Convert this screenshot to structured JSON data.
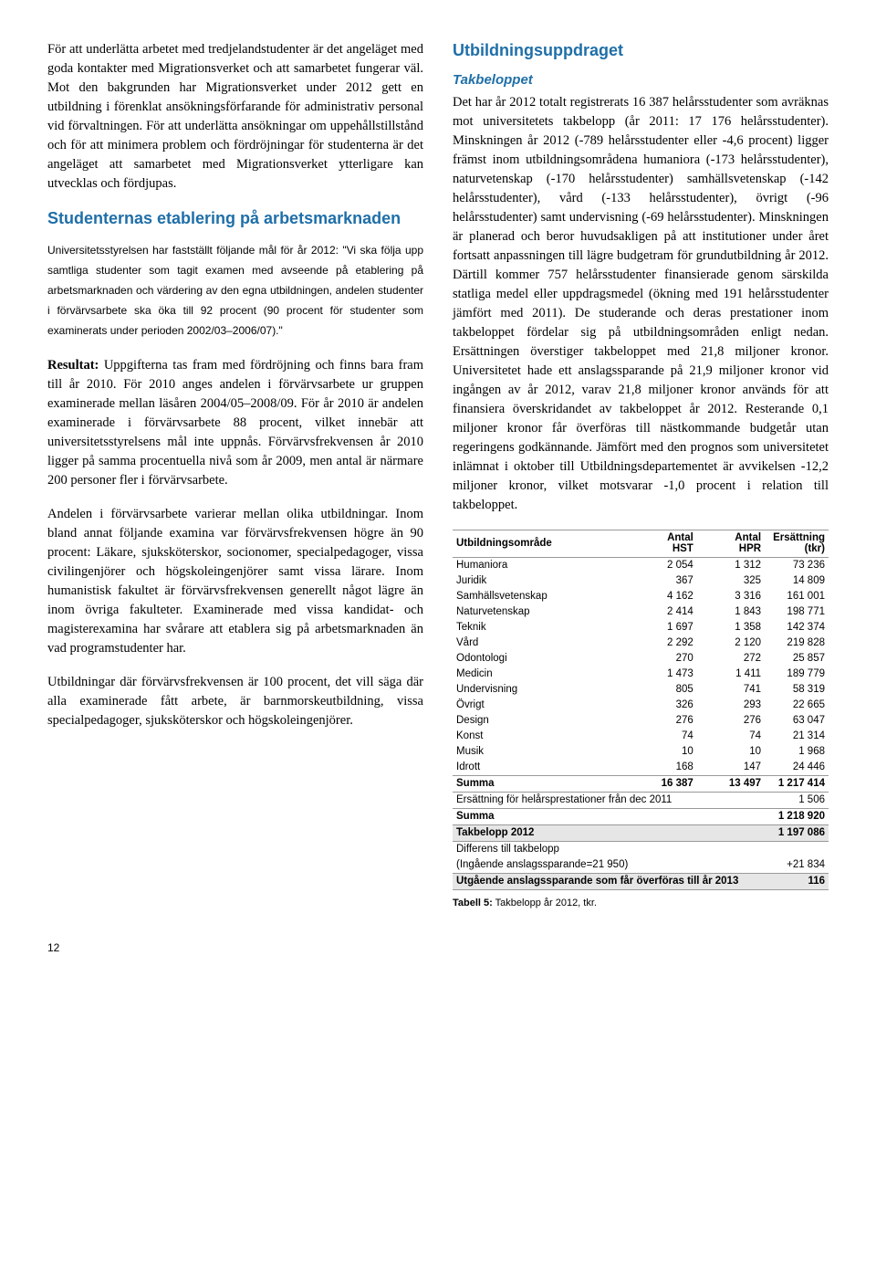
{
  "col1": {
    "p1": "För att underlätta arbetet med tredjelandstudenter är det angeläget med goda kontakter med Migrationsverket och att samarbetet fungerar väl. Mot den bakgrunden har Migrationsverket under 2012 gett en utbildning i förenklat ansökningsförfarande för administrativ personal vid förvaltningen. För att underlätta ansökningar om uppehållstillstånd och för att minimera problem och fördröjningar för studenterna är det angeläget att samarbetet med Migrationsverket ytterligare kan utvecklas och fördjupas.",
    "h1": "Studenternas etablering på arbetsmarknaden",
    "policy": "Universitetsstyrelsen har fastställt följande mål för år 2012: \"Vi ska följa upp samtliga studenter som tagit examen med avseende på etablering på arbetsmarknaden och värdering av den egna utbildningen, andelen studenter i förvärvsarbete ska öka till 92 procent (90 procent för studenter som examinerats under perioden 2002/03–2006/07).\"",
    "p2_label": "Resultat:",
    "p2": " Uppgifterna tas fram med fördröjning och finns bara fram till år 2010. För 2010 anges andelen i förvärvsarbete ur gruppen examinerade mellan läsåren 2004/05–2008/09. För år 2010 är andelen examinerade i förvärvsarbete 88 procent, vilket innebär att universitetsstyrelsens mål inte uppnås. Förvärvsfrekvensen år 2010 ligger på samma procentuella nivå som år 2009, men antal är närmare 200 personer fler i förvärvsarbete.",
    "p3": "Andelen i förvärvsarbete varierar mellan olika utbildningar. Inom bland annat följande examina var förvärvsfrekvensen högre än 90 procent: Läkare, sjuksköterskor, socionomer, specialpedagoger, vissa civilingenjörer och högskoleingenjörer samt vissa lärare. Inom humanistisk fakultet är förvärvsfrekvensen generellt något lägre än inom övriga fakulteter. Examinerade med vissa kandidat- och magisterexamina har svårare att etablera sig på arbetsmarknaden än vad programstudenter har.",
    "p4": "Utbildningar där förvärvsfrekvensen är 100 procent, det vill säga där alla examinerade fått arbete, är barnmorskeutbildning, vissa specialpedagoger, sjuksköterskor och högskoleingenjörer."
  },
  "col2": {
    "h1": "Utbildningsuppdraget",
    "h2": "Takbeloppet",
    "p1": "Det har år 2012 totalt registrerats 16 387 helårsstudenter som avräknas mot universitetets takbelopp (år 2011: 17 176 helårsstudenter). Minskningen år 2012 (-789 helårsstudenter eller -4,6 procent) ligger främst inom utbildningsområdena humaniora (-173 helårsstudenter), naturvetenskap (-170 helårsstudenter) samhällsvetenskap (-142 helårsstudenter), vård (-133 helårsstudenter), övrigt (-96 helårsstudenter) samt undervisning (-69 helårsstudenter). Minskningen är planerad och beror huvudsakligen på att institutioner under året fortsatt anpassningen till lägre budgetram för grundutbildning år 2012. Därtill kommer 757 helårsstudenter finansierade genom särskilda statliga medel eller uppdragsmedel (ökning med 191 helårsstudenter jämfört med 2011). De studerande och deras prestationer inom takbeloppet fördelar sig på utbildningsområden enligt nedan. Ersättningen överstiger takbeloppet med 21,8 miljoner kronor. Universitetet hade ett anslagssparande på 21,9 miljoner kronor vid ingången av år 2012, varav 21,8 miljoner kronor används för att finansiera överskridandet av takbeloppet år 2012. Resterande 0,1 miljoner kronor får överföras till nästkommande budgetår utan regeringens godkännande. Jämfört med den prognos som universitetet inlämnat i oktober till Utbildningsdepartementet är avvikelsen -12,2 miljoner kronor, vilket motsvarar -1,0 procent i relation till takbeloppet."
  },
  "table": {
    "head": [
      "Utbildningsområde",
      "Antal HST",
      "Antal HPR",
      "Ersättning (tkr)"
    ],
    "rows": [
      [
        "Humaniora",
        "2 054",
        "1 312",
        "73 236"
      ],
      [
        "Juridik",
        "367",
        "325",
        "14 809"
      ],
      [
        "Samhällsvetenskap",
        "4 162",
        "3 316",
        "161 001"
      ],
      [
        "Naturvetenskap",
        "2 414",
        "1 843",
        "198 771"
      ],
      [
        "Teknik",
        "1 697",
        "1 358",
        "142 374"
      ],
      [
        "Vård",
        "2 292",
        "2 120",
        "219 828"
      ],
      [
        "Odontologi",
        "270",
        "272",
        "25 857"
      ],
      [
        "Medicin",
        "1 473",
        "1 411",
        "189 779"
      ],
      [
        "Undervisning",
        "805",
        "741",
        "58 319"
      ],
      [
        "Övrigt",
        "326",
        "293",
        "22 665"
      ],
      [
        "Design",
        "276",
        "276",
        "63 047"
      ],
      [
        "Konst",
        "74",
        "74",
        "21 314"
      ],
      [
        "Musik",
        "10",
        "10",
        "1 968"
      ],
      [
        "Idrott",
        "168",
        "147",
        "24 446"
      ]
    ],
    "sum1": [
      "Summa",
      "16 387",
      "13 497",
      "1 217 414"
    ],
    "extra1": [
      "Ersättning för helårsprestationer från dec 2011",
      "1 506"
    ],
    "sum2": [
      "Summa",
      "1 218 920"
    ],
    "tak": [
      "Takbelopp 2012",
      "1 197 086"
    ],
    "diff_label": "Differens till takbelopp",
    "diff_note": "(Ingående anslagssparande=21 950)",
    "diff_val": "+21 834",
    "out_label": "Utgående anslagssparande som får överföras till år 2013",
    "out_val": "116",
    "caption_b": "Tabell 5:",
    "caption": " Takbelopp år 2012, tkr."
  },
  "pagenum": "12"
}
